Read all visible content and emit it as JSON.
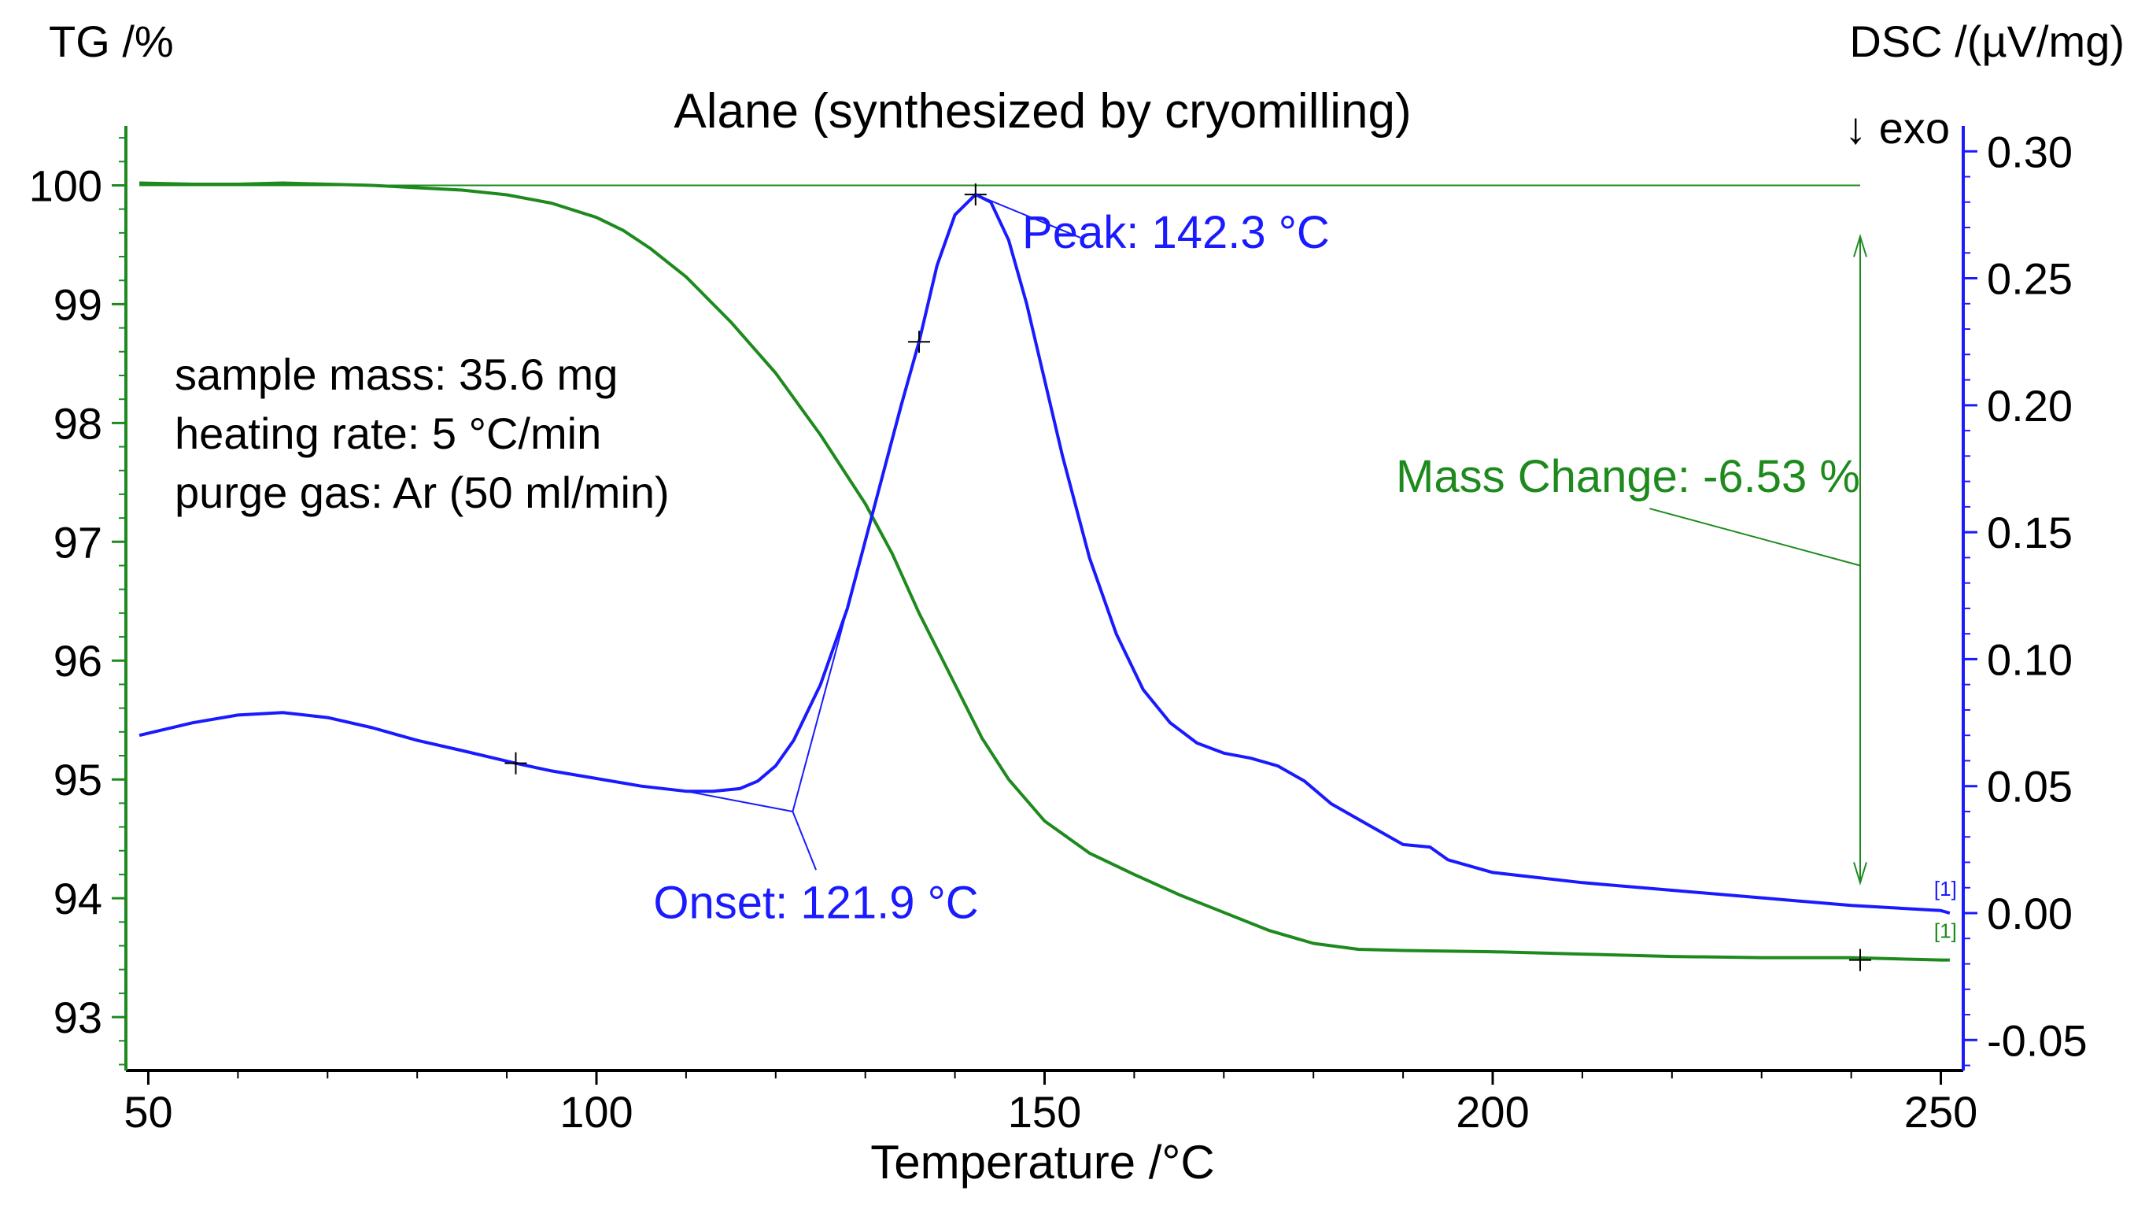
{
  "chart_data": {
    "type": "line",
    "title": "Alane (synthesized by cryomilling)",
    "xlabel": "Temperature /°C",
    "ylabel_left": "TG /%",
    "ylabel_right": "DSC /(µV/mg)",
    "exo_label": "↓ exo",
    "xlim": [
      47.5,
      252.5
    ],
    "ylim_left": [
      92.55,
      100.5
    ],
    "ylim_right": [
      -0.062,
      0.31
    ],
    "x_ticks": [
      50,
      100,
      150,
      200,
      250
    ],
    "y_ticks_left": [
      93,
      94,
      95,
      96,
      97,
      98,
      99,
      100
    ],
    "y_ticks_right": [
      -0.05,
      0.0,
      0.05,
      0.1,
      0.15,
      0.2,
      0.25,
      0.3
    ],
    "y_tick_labels_left": [
      "93",
      "94",
      "95",
      "96",
      "97",
      "98",
      "99",
      "100"
    ],
    "y_tick_labels_right": [
      "-0.05",
      "0.00",
      "0.05",
      "0.10",
      "0.15",
      "0.20",
      "0.25",
      "0.30"
    ],
    "x_tick_labels": [
      "50",
      "100",
      "150",
      "200",
      "250"
    ],
    "colors": {
      "tg": "#1e8a1e",
      "dsc": "#1a1aff",
      "axis_left": "#1e8a1e",
      "axis_right": "#1a1aff",
      "text": "#000000"
    },
    "sample_info": [
      "sample mass: 35.6 mg",
      "heating rate: 5 °C/min",
      "purge gas: Ar (50 ml/min)"
    ],
    "series": [
      {
        "name": "TG",
        "axis": "left",
        "marker": "[1]",
        "x": [
          49,
          55,
          60,
          65,
          70,
          75,
          80,
          85,
          90,
          95,
          100,
          103,
          106,
          110,
          115,
          120,
          125,
          130,
          133,
          136,
          140,
          143,
          146,
          150,
          155,
          160,
          165,
          170,
          175,
          180,
          185,
          190,
          200,
          210,
          220,
          230,
          240,
          245,
          250,
          251
        ],
        "y": [
          100.02,
          100.01,
          100.01,
          100.02,
          100.01,
          100.0,
          99.98,
          99.96,
          99.92,
          99.85,
          99.73,
          99.62,
          99.47,
          99.23,
          98.85,
          98.42,
          97.9,
          97.32,
          96.9,
          96.4,
          95.8,
          95.35,
          95.0,
          94.65,
          94.38,
          94.2,
          94.03,
          93.88,
          93.73,
          93.62,
          93.57,
          93.56,
          93.55,
          93.53,
          93.51,
          93.5,
          93.5,
          93.49,
          93.48,
          93.48
        ]
      },
      {
        "name": "DSC",
        "axis": "right",
        "marker": "[1]",
        "x": [
          49,
          55,
          60,
          65,
          70,
          75,
          80,
          85,
          91,
          95,
          100,
          105,
          110,
          113,
          116,
          118,
          120,
          122,
          125,
          128,
          131,
          134,
          136,
          138,
          140,
          142.3,
          144,
          146,
          148,
          150,
          152,
          155,
          158,
          161,
          164,
          167,
          170,
          173,
          176,
          179,
          182,
          186,
          190,
          193,
          195,
          200,
          210,
          220,
          230,
          240,
          245,
          250,
          251
        ],
        "y": [
          0.07,
          0.075,
          0.078,
          0.079,
          0.077,
          0.073,
          0.068,
          0.064,
          0.059,
          0.056,
          0.053,
          0.05,
          0.048,
          0.048,
          0.049,
          0.052,
          0.058,
          0.068,
          0.09,
          0.12,
          0.16,
          0.2,
          0.225,
          0.255,
          0.275,
          0.283,
          0.28,
          0.265,
          0.24,
          0.21,
          0.18,
          0.14,
          0.11,
          0.088,
          0.075,
          0.067,
          0.063,
          0.061,
          0.058,
          0.052,
          0.043,
          0.035,
          0.027,
          0.026,
          0.021,
          0.016,
          0.012,
          0.009,
          0.006,
          0.003,
          0.002,
          0.001,
          0.0
        ]
      }
    ],
    "annotations": {
      "peak": {
        "label": "Peak: 142.3 °C",
        "x": 142.3,
        "y": 0.283
      },
      "onset": {
        "label": "Onset: 121.9 °C",
        "x": 121.9,
        "y": 0.04,
        "tangent_from": [
          110,
          0.048
        ],
        "tangent_to": [
          136,
          0.225
        ]
      },
      "mass_change": {
        "label": "Mass Change: -6.53 %",
        "x": 241,
        "from": 100.0,
        "to": 93.47
      },
      "dsc_markers": [
        [
          91,
          0.059
        ],
        [
          136,
          0.225
        ],
        [
          142.3,
          0.283
        ]
      ],
      "tg_marker": [
        241,
        93.48
      ]
    }
  }
}
